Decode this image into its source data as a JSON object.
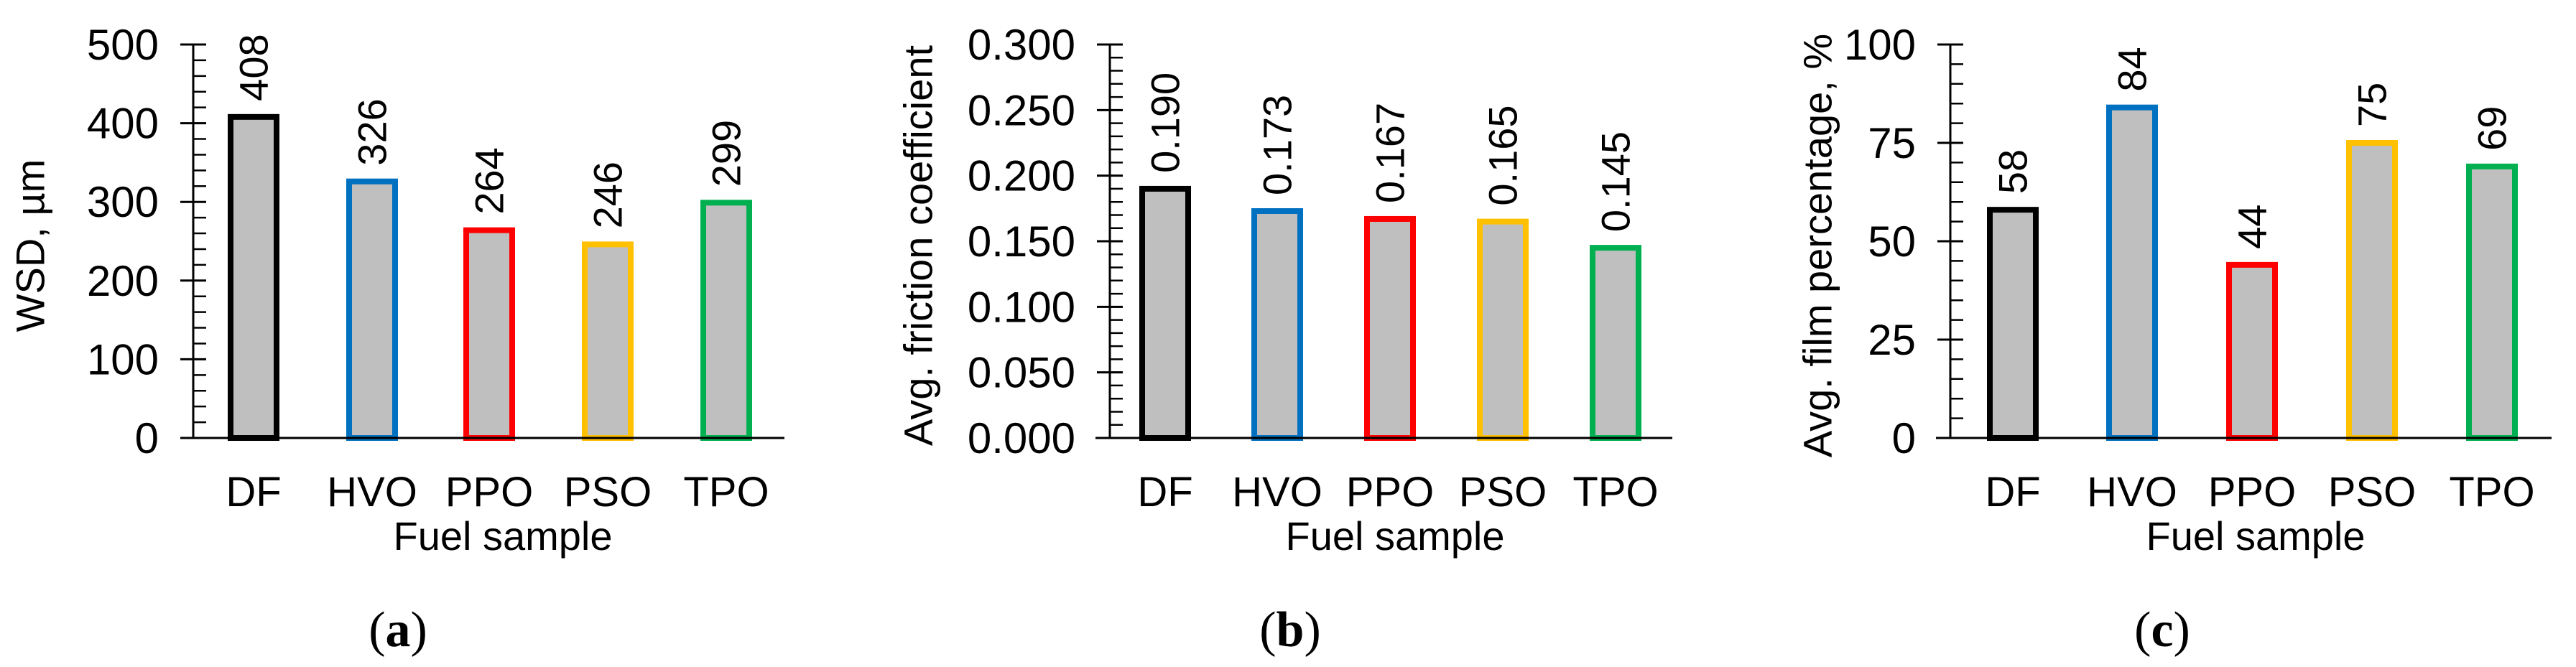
{
  "chart_data": [
    {
      "type": "bar",
      "panel": "(a)",
      "panel_letter": "a",
      "title": "",
      "xlabel": "Fuel sample",
      "ylabel": "WSD, µm",
      "categories": [
        "DF",
        "HVO",
        "PPO",
        "PSO",
        "TPO"
      ],
      "values": [
        408,
        326,
        264,
        246,
        299
      ],
      "value_labels": [
        "408",
        "326",
        "264",
        "246",
        "299"
      ],
      "ylim": [
        0,
        500
      ],
      "yticks": [
        0,
        100,
        200,
        300,
        400,
        500
      ],
      "ytick_labels": [
        "0",
        "100",
        "200",
        "300",
        "400",
        "500"
      ],
      "minor_step": 20,
      "grid": false,
      "legend": "none"
    },
    {
      "type": "bar",
      "panel": "(b)",
      "panel_letter": "b",
      "title": "",
      "xlabel": "Fuel sample",
      "ylabel": "Avg. friction coefficient",
      "categories": [
        "DF",
        "HVO",
        "PPO",
        "PSO",
        "TPO"
      ],
      "values": [
        0.19,
        0.173,
        0.167,
        0.165,
        0.145
      ],
      "value_labels": [
        "0.190",
        "0.173",
        "0.167",
        "0.165",
        "0.145"
      ],
      "ylim": [
        0,
        0.3
      ],
      "yticks": [
        0,
        0.05,
        0.1,
        0.15,
        0.2,
        0.25,
        0.3
      ],
      "ytick_labels": [
        "0.000",
        "0.050",
        "0.100",
        "0.150",
        "0.200",
        "0.250",
        "0.300"
      ],
      "minor_step": 0.01,
      "grid": false,
      "legend": "none"
    },
    {
      "type": "bar",
      "panel": "(c)",
      "panel_letter": "c",
      "title": "",
      "xlabel": "Fuel sample",
      "ylabel": "Avg. film percentage, %",
      "categories": [
        "DF",
        "HVO",
        "PPO",
        "PSO",
        "TPO"
      ],
      "values": [
        58,
        84,
        44,
        75,
        69
      ],
      "value_labels": [
        "58",
        "84",
        "44",
        "75",
        "69"
      ],
      "ylim": [
        0,
        100
      ],
      "yticks": [
        0,
        25,
        50,
        75,
        100
      ],
      "ytick_labels": [
        "0",
        "25",
        "50",
        "75",
        "100"
      ],
      "minor_step": 5,
      "grid": false,
      "legend": "none"
    }
  ],
  "colors": {
    "bar_fill": "#BFBFBF",
    "edges": [
      "#000000",
      "#0070C0",
      "#FF0000",
      "#FFC000",
      "#00B050"
    ],
    "axis": "#000000"
  }
}
